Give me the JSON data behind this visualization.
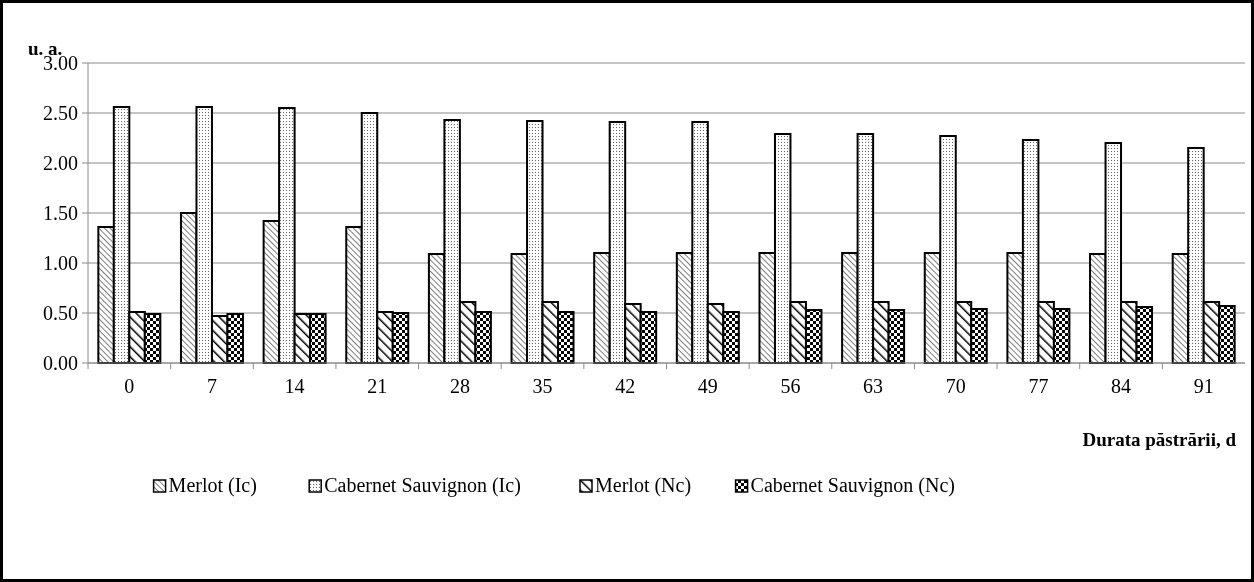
{
  "chart_data": {
    "type": "bar",
    "ylabel": "u. a.",
    "xlabel": "Durata păstrării, d",
    "categories": [
      "0",
      "7",
      "14",
      "21",
      "28",
      "35",
      "42",
      "49",
      "56",
      "63",
      "70",
      "77",
      "84",
      "91"
    ],
    "series": [
      {
        "name": "Merlot (Ic)",
        "color": "#000000",
        "values": [
          1.36,
          1.5,
          1.42,
          1.36,
          1.09,
          1.09,
          1.1,
          1.1,
          1.1,
          1.1,
          1.1,
          1.1,
          1.09,
          1.09
        ]
      },
      {
        "name": "Cabernet Sauvignon (Ic)",
        "color": "#000000",
        "values": [
          2.56,
          2.56,
          2.55,
          2.5,
          2.43,
          2.42,
          2.41,
          2.41,
          2.29,
          2.29,
          2.27,
          2.23,
          2.2,
          2.15
        ]
      },
      {
        "name": "Merlot (Nc)",
        "color": "#000000",
        "values": [
          0.51,
          0.47,
          0.49,
          0.51,
          0.61,
          0.61,
          0.59,
          0.59,
          0.61,
          0.61,
          0.61,
          0.61,
          0.61,
          0.61
        ]
      },
      {
        "name": "Cabernet Sauvignon (Nc)",
        "color": "#000000",
        "values": [
          0.49,
          0.49,
          0.49,
          0.5,
          0.51,
          0.51,
          0.51,
          0.51,
          0.53,
          0.53,
          0.54,
          0.54,
          0.56,
          0.57
        ]
      }
    ],
    "ylim": [
      0,
      3
    ],
    "yticks": [
      {
        "value": 0,
        "label": "0.00"
      },
      {
        "value": 0.5,
        "label": "0.50"
      },
      {
        "value": 1,
        "label": "1.00"
      },
      {
        "value": 1.5,
        "label": "1.50"
      },
      {
        "value": 2,
        "label": "2.00"
      },
      {
        "value": 2.5,
        "label": "2.50"
      },
      {
        "value": 3,
        "label": "3.00"
      }
    ],
    "grid": "y",
    "legend": "bottom"
  }
}
